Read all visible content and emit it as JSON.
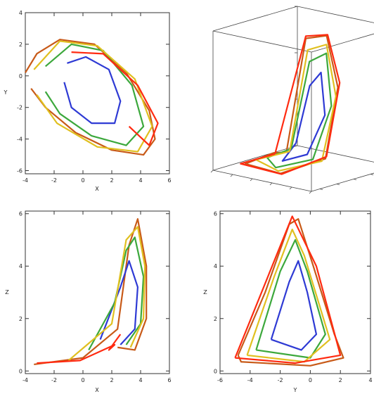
{
  "chart_data": [
    {
      "type": "line",
      "panel": "xy",
      "xlabel": "X",
      "ylabel": "Y",
      "xlim": [
        -4,
        6
      ],
      "ylim": [
        -6.2,
        4
      ],
      "xticks": [
        -4,
        -2,
        0,
        2,
        4,
        6
      ],
      "yticks": [
        -6,
        -4,
        -2,
        0,
        2,
        4
      ],
      "grid": false,
      "series": [
        {
          "color": "#c85a18",
          "values": [
            [
              -4,
              0.2
            ],
            [
              -3.2,
              1.4
            ],
            [
              -1.6,
              2.3
            ],
            [
              0.8,
              2.0
            ],
            [
              3.0,
              0.2
            ],
            [
              4.6,
              -2.2
            ],
            [
              5.0,
              -4.0
            ],
            [
              4.2,
              -5.0
            ],
            [
              2.0,
              -4.7
            ],
            [
              -0.5,
              -3.6
            ],
            [
              -2.6,
              -2.0
            ],
            [
              -3.6,
              -0.8
            ]
          ]
        },
        {
          "color": "#2e3ad4",
          "values": [
            [
              -1.1,
              0.8
            ],
            [
              0.2,
              1.2
            ],
            [
              1.8,
              0.4
            ],
            [
              2.6,
              -1.6
            ],
            [
              2.2,
              -3.0
            ],
            [
              0.6,
              -3.0
            ],
            [
              -0.8,
              -2.0
            ],
            [
              -1.3,
              -0.4
            ]
          ]
        },
        {
          "color": "#3ca83c",
          "values": [
            [
              -2.6,
              0.6
            ],
            [
              -0.8,
              2.0
            ],
            [
              1.4,
              1.6
            ],
            [
              3.4,
              -0.6
            ],
            [
              4.2,
              -3.2
            ],
            [
              3.0,
              -4.4
            ],
            [
              0.6,
              -3.8
            ],
            [
              -1.6,
              -2.4
            ],
            [
              -2.6,
              -1.0
            ]
          ]
        },
        {
          "color": "#e0c020",
          "values": [
            [
              -3.4,
              0.4
            ],
            [
              -1.6,
              2.2
            ],
            [
              1.0,
              1.9
            ],
            [
              3.6,
              -0.2
            ],
            [
              4.8,
              -3.2
            ],
            [
              3.8,
              -4.8
            ],
            [
              1.0,
              -4.5
            ],
            [
              -1.8,
              -3.0
            ],
            [
              -3.2,
              -1.2
            ]
          ]
        },
        {
          "color": "#ff2a10",
          "values": [
            [
              -0.8,
              1.5
            ],
            [
              1.4,
              1.4
            ],
            [
              3.8,
              -0.6
            ],
            [
              5.2,
              -3.0
            ],
            [
              4.6,
              -4.4
            ],
            [
              3.2,
              -3.2
            ]
          ]
        }
      ]
    },
    {
      "type": "line",
      "panel": "3d",
      "series": [
        {
          "color": "#c85a18",
          "values": [
            [
              -1.0,
              0.2,
              0.5
            ],
            [
              2.0,
              -1.0,
              5.8
            ],
            [
              3.6,
              -0.4,
              6.0
            ],
            [
              4.4,
              0.0,
              3.8
            ],
            [
              4.0,
              -1.0,
              0.8
            ],
            [
              2.0,
              -4.0,
              0.3
            ],
            [
              -2.0,
              -3.5,
              0.3
            ],
            [
              -3.0,
              1.0,
              0.2
            ],
            [
              -1.0,
              0.2,
              0.5
            ]
          ]
        },
        {
          "color": "#2e3ad4",
          "values": [
            [
              1.0,
              -1.0,
              1.2
            ],
            [
              2.4,
              -1.0,
              3.8
            ],
            [
              3.2,
              -0.6,
              4.4
            ],
            [
              3.6,
              -0.6,
              2.6
            ],
            [
              3.0,
              -2.0,
              1.0
            ],
            [
              1.0,
              -2.6,
              0.6
            ],
            [
              1.0,
              -1.0,
              1.2
            ]
          ]
        },
        {
          "color": "#3ca83c",
          "values": [
            [
              0.0,
              -0.4,
              0.8
            ],
            [
              2.2,
              -0.8,
              4.8
            ],
            [
              3.4,
              -0.2,
              5.2
            ],
            [
              4.0,
              -0.3,
              3.0
            ],
            [
              3.4,
              -1.8,
              0.8
            ],
            [
              1.0,
              -3.4,
              0.4
            ],
            [
              -1.5,
              -1.5,
              0.4
            ],
            [
              0.0,
              -0.4,
              0.8
            ]
          ]
        },
        {
          "color": "#e0c020",
          "values": [
            [
              -0.5,
              0.0,
              0.6
            ],
            [
              2.1,
              -0.9,
              5.3
            ],
            [
              3.5,
              -0.3,
              5.6
            ],
            [
              4.2,
              0.0,
              3.4
            ],
            [
              3.8,
              -1.2,
              0.7
            ],
            [
              1.6,
              -3.8,
              0.35
            ],
            [
              -2.2,
              -2.0,
              0.3
            ],
            [
              -0.5,
              0.0,
              0.6
            ]
          ]
        },
        {
          "color": "#ff2a10",
          "values": [
            [
              -2.5,
              0.6,
              0.25
            ],
            [
              2.0,
              -1.0,
              5.9
            ],
            [
              3.7,
              -0.4,
              6.05
            ],
            [
              4.5,
              0.1,
              4.0
            ],
            [
              4.1,
              -1.0,
              0.9
            ],
            [
              2.2,
              -4.1,
              0.3
            ],
            [
              -2.4,
              -3.6,
              0.28
            ],
            [
              -2.5,
              0.6,
              0.25
            ]
          ]
        }
      ]
    },
    {
      "type": "line",
      "panel": "xz",
      "xlabel": "X",
      "ylabel": "Z",
      "xlim": [
        -4,
        6
      ],
      "ylim": [
        -0.1,
        6.1
      ],
      "xticks": [
        -4,
        -2,
        0,
        2,
        4,
        6
      ],
      "yticks": [
        0,
        2,
        4,
        6
      ],
      "grid": false,
      "series": [
        {
          "color": "#c85a18",
          "values": [
            [
              -3.4,
              0.25
            ],
            [
              0.0,
              0.5
            ],
            [
              2.4,
              1.6
            ],
            [
              3.2,
              4.8
            ],
            [
              3.8,
              5.8
            ],
            [
              4.4,
              4.0
            ],
            [
              4.4,
              2.0
            ],
            [
              3.6,
              0.8
            ],
            [
              2.4,
              0.9
            ]
          ]
        },
        {
          "color": "#2e3ad4",
          "values": [
            [
              1.2,
              1.2
            ],
            [
              2.6,
              3.2
            ],
            [
              3.2,
              4.2
            ],
            [
              3.8,
              3.2
            ],
            [
              3.6,
              1.6
            ],
            [
              2.6,
              1.0
            ]
          ]
        },
        {
          "color": "#3ca83c",
          "values": [
            [
              0.4,
              0.8
            ],
            [
              2.2,
              2.6
            ],
            [
              3.0,
              4.6
            ],
            [
              3.6,
              5.1
            ],
            [
              4.2,
              3.6
            ],
            [
              4.0,
              1.8
            ],
            [
              3.0,
              1.0
            ]
          ]
        },
        {
          "color": "#e0c020",
          "values": [
            [
              -1.0,
              0.4
            ],
            [
              2.0,
              1.8
            ],
            [
              3.0,
              5.0
            ],
            [
              3.8,
              5.5
            ],
            [
              4.3,
              4.0
            ],
            [
              4.2,
              2.0
            ],
            [
              3.3,
              0.9
            ]
          ]
        },
        {
          "color": "#ff2a10",
          "values": [
            [
              -3.2,
              0.3
            ],
            [
              -0.2,
              0.4
            ],
            [
              2.2,
              1.0
            ],
            [
              1.8,
              0.8
            ],
            [
              2.6,
              1.4
            ]
          ]
        }
      ]
    },
    {
      "type": "line",
      "panel": "yz",
      "xlabel": "Y",
      "ylabel": "Z",
      "xlim": [
        -6,
        4
      ],
      "ylim": [
        -0.1,
        6.1
      ],
      "xticks": [
        -6,
        -4,
        -2,
        0,
        2,
        4
      ],
      "yticks": [
        0,
        2,
        4,
        6
      ],
      "grid": false,
      "series": [
        {
          "color": "#c85a18",
          "values": [
            [
              -4.8,
              0.6
            ],
            [
              -3.0,
              3.0
            ],
            [
              -1.4,
              5.6
            ],
            [
              -0.8,
              5.8
            ],
            [
              0.2,
              4.0
            ],
            [
              1.6,
              1.4
            ],
            [
              2.2,
              0.5
            ],
            [
              0.0,
              0.2
            ],
            [
              -4.6,
              0.35
            ],
            [
              -4.8,
              0.6
            ]
          ]
        },
        {
          "color": "#2e3ad4",
          "values": [
            [
              -2.6,
              1.2
            ],
            [
              -1.4,
              3.4
            ],
            [
              -0.8,
              4.2
            ],
            [
              -0.2,
              3.0
            ],
            [
              0.4,
              1.4
            ],
            [
              -0.6,
              0.8
            ],
            [
              -2.6,
              1.2
            ]
          ]
        },
        {
          "color": "#3ca83c",
          "values": [
            [
              -3.6,
              0.8
            ],
            [
              -2.0,
              3.8
            ],
            [
              -1.0,
              5.0
            ],
            [
              -0.2,
              3.8
            ],
            [
              1.0,
              1.4
            ],
            [
              0.0,
              0.5
            ],
            [
              -3.6,
              0.8
            ]
          ]
        },
        {
          "color": "#e0c020",
          "values": [
            [
              -4.2,
              0.6
            ],
            [
              -2.4,
              3.6
            ],
            [
              -1.2,
              5.4
            ],
            [
              -0.4,
              4.4
            ],
            [
              1.3,
              1.2
            ],
            [
              -0.4,
              0.35
            ],
            [
              -4.2,
              0.6
            ]
          ]
        },
        {
          "color": "#ff2a10",
          "values": [
            [
              -5.0,
              0.5
            ],
            [
              -1.2,
              5.9
            ],
            [
              0.4,
              4.0
            ],
            [
              2.0,
              0.6
            ],
            [
              -1.0,
              0.3
            ],
            [
              -5.0,
              0.5
            ]
          ]
        }
      ]
    }
  ]
}
